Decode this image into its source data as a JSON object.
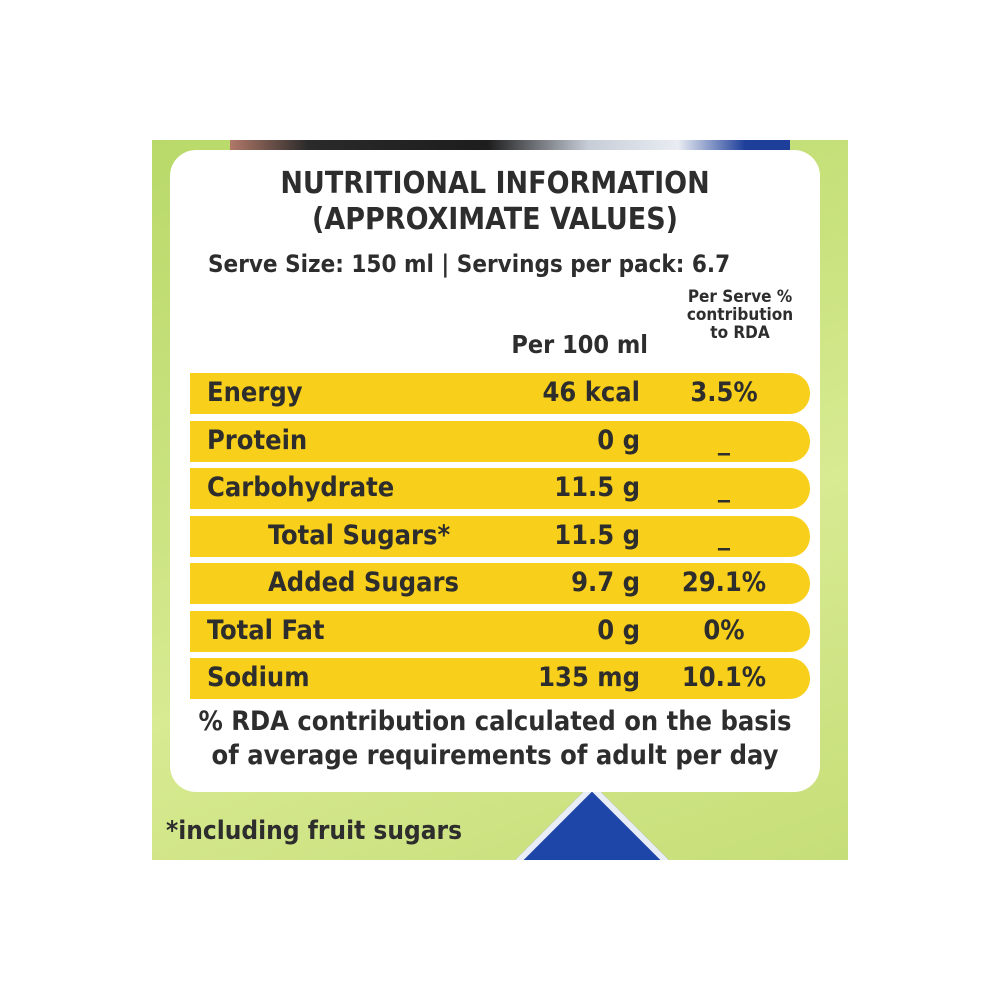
{
  "label": {
    "title_line1": "NUTRITIONAL INFORMATION",
    "title_line2": "(APPROXIMATE VALUES)",
    "serve_info": "Serve Size: 150 ml | Servings per pack: 6.7",
    "headers": {
      "per100": "Per 100 ml",
      "rda_line1": "Per Serve %",
      "rda_line2": "contribution",
      "rda_line3": "to RDA"
    },
    "rows": [
      {
        "nutrient": "Energy",
        "per100": "46 kcal",
        "rda": "3.5%"
      },
      {
        "nutrient": "Protein",
        "per100": "0 g",
        "rda": "_"
      },
      {
        "nutrient": "Carbohydrate",
        "per100": "11.5 g",
        "rda": "_"
      },
      {
        "nutrient": "Total Sugars*",
        "per100": "11.5 g",
        "rda": "_"
      },
      {
        "nutrient": "Added Sugars",
        "per100": "9.7 g",
        "rda": "29.1%"
      },
      {
        "nutrient": "Total Fat",
        "per100": "0 g",
        "rda": "0%"
      },
      {
        "nutrient": "Sodium",
        "per100": "135 mg",
        "rda": "10.1%"
      }
    ],
    "note_line1": "% RDA contribution calculated on the basis",
    "note_line2": "of average requirements of adult per day"
  },
  "footnote": "*including fruit sugars",
  "colors": {
    "row_fill": "#f8cf1a",
    "package_green": "#c9e27e",
    "text": "#2d2d2d",
    "accent_blue": "#1d46a8"
  }
}
